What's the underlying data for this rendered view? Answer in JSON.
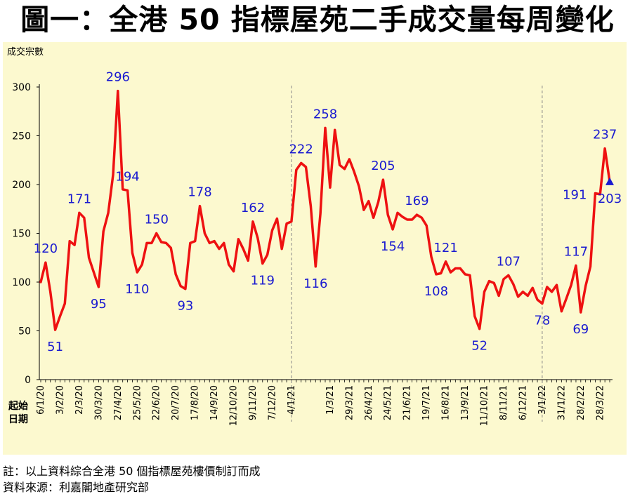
{
  "title": "圖一：全港 50 指標屋苑二手成交量每周變化",
  "notes": {
    "note1": "註：以上資料綜合全港 50 個指標屋苑樓價制訂而成",
    "note2": "資料來源：利嘉閣地產研究部"
  },
  "colors": {
    "plot_bg": "#fcf9cf",
    "line": "#ee1111",
    "labels": "#1a1ad0",
    "marker": "#1a1ad0"
  },
  "chart_data": {
    "type": "line",
    "title": "圖一：全港 50 指標屋苑二手成交量每周變化",
    "ylabel": "成交宗數",
    "xlabel": "起始日期",
    "xlabel_lines": [
      "起始",
      "日期"
    ],
    "ylim": [
      0,
      300
    ],
    "yticks": [
      0,
      50,
      100,
      150,
      200,
      250,
      300
    ],
    "x_start_week": "6/1/20",
    "x_tick_labels": [
      "6/1/20",
      "3/2/20",
      "2/3/20",
      "30/3/20",
      "27/4/20",
      "25/5/20",
      "22/6/20",
      "20/7/20",
      "17/8/20",
      "14/9/20",
      "12/10/20",
      "9/11/20",
      "7/12/20",
      "4/1/21",
      "1/3/21",
      "29/3/21",
      "26/4/21",
      "24/5/21",
      "21/6/21",
      "19/7/21",
      "16/8/21",
      "13/9/21",
      "11/10/21",
      "8/11/21",
      "6/12/21",
      "3/1/22",
      "31/1/22",
      "28/2/22",
      "28/3/22"
    ],
    "x_tick_index": [
      0,
      4,
      8,
      12,
      16,
      20,
      24,
      28,
      32,
      36,
      40,
      44,
      48,
      52,
      60,
      64,
      68,
      72,
      76,
      80,
      84,
      88,
      92,
      96,
      100,
      104,
      108,
      112,
      116
    ],
    "year_dividers_index": [
      52,
      104
    ],
    "values": [
      100,
      120,
      90,
      51,
      65,
      78,
      142,
      138,
      171,
      166,
      125,
      110,
      95,
      152,
      171,
      210,
      296,
      195,
      194,
      130,
      110,
      118,
      140,
      140,
      150,
      141,
      140,
      135,
      108,
      96,
      93,
      140,
      142,
      178,
      150,
      140,
      142,
      134,
      140,
      118,
      111,
      144,
      134,
      122,
      162,
      145,
      119,
      128,
      153,
      165,
      134,
      160,
      162,
      215,
      222,
      218,
      178,
      116,
      170,
      258,
      197,
      256,
      220,
      216,
      226,
      213,
      198,
      174,
      183,
      166,
      182,
      205,
      169,
      154,
      171,
      167,
      164,
      164,
      169,
      166,
      158,
      126,
      108,
      109,
      121,
      110,
      114,
      114,
      108,
      107,
      65,
      52,
      90,
      101,
      99,
      86,
      103,
      107,
      98,
      85,
      90,
      86,
      94,
      82,
      78,
      95,
      90,
      97,
      70,
      83,
      97,
      117,
      69,
      96,
      116,
      191,
      190,
      237,
      203
    ],
    "annotations": [
      {
        "index": 1,
        "label": "120",
        "pos": "above"
      },
      {
        "index": 3,
        "label": "51",
        "pos": "below"
      },
      {
        "index": 8,
        "label": "171",
        "pos": "above"
      },
      {
        "index": 12,
        "label": "95",
        "pos": "below"
      },
      {
        "index": 16,
        "label": "296",
        "pos": "above"
      },
      {
        "index": 18,
        "label": "194",
        "pos": "above"
      },
      {
        "index": 20,
        "label": "110",
        "pos": "below"
      },
      {
        "index": 24,
        "label": "150",
        "pos": "above"
      },
      {
        "index": 30,
        "label": "93",
        "pos": "below"
      },
      {
        "index": 33,
        "label": "178",
        "pos": "above"
      },
      {
        "index": 44,
        "label": "162",
        "pos": "above"
      },
      {
        "index": 46,
        "label": "119",
        "pos": "below"
      },
      {
        "index": 54,
        "label": "222",
        "pos": "above"
      },
      {
        "index": 57,
        "label": "116",
        "pos": "below"
      },
      {
        "index": 59,
        "label": "258",
        "pos": "above"
      },
      {
        "index": 71,
        "label": "205",
        "pos": "above"
      },
      {
        "index": 73,
        "label": "154",
        "pos": "below"
      },
      {
        "index": 78,
        "label": "169",
        "pos": "above"
      },
      {
        "index": 82,
        "label": "108",
        "pos": "below"
      },
      {
        "index": 84,
        "label": "121",
        "pos": "above"
      },
      {
        "index": 91,
        "label": "52",
        "pos": "below"
      },
      {
        "index": 97,
        "label": "107",
        "pos": "above"
      },
      {
        "index": 104,
        "label": "78",
        "pos": "below"
      },
      {
        "index": 111,
        "label": "117",
        "pos": "above"
      },
      {
        "index": 112,
        "label": "69",
        "pos": "below"
      },
      {
        "index": 115,
        "label": "191",
        "pos": "left"
      },
      {
        "index": 117,
        "label": "237",
        "pos": "above"
      },
      {
        "index": 118,
        "label": "203",
        "pos": "below"
      }
    ],
    "last_point_marker": "triangle"
  }
}
